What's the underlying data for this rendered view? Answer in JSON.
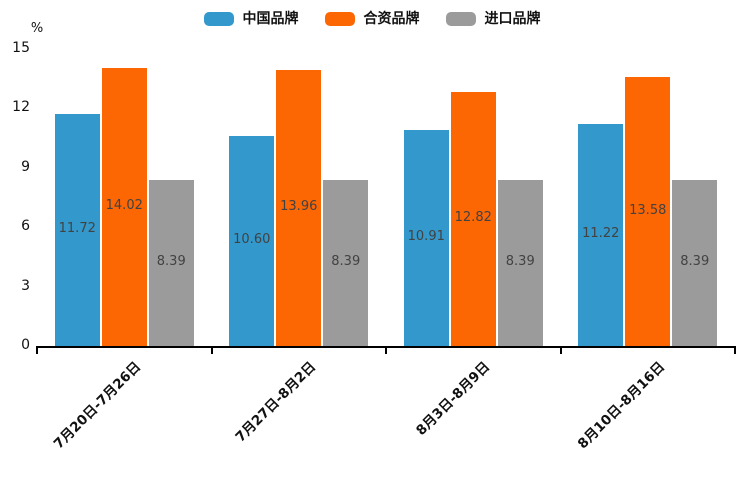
{
  "chart_data": {
    "type": "bar",
    "title": "",
    "unit_label": "%",
    "categories": [
      "7月20日-7月26日",
      "7月27日-8月2日",
      "8月3日-8月9日",
      "8月10日-8月16日"
    ],
    "series": [
      {
        "name": "中国品牌",
        "color": "#3398cc",
        "values": [
          11.72,
          10.6,
          10.91,
          11.22
        ],
        "labels": [
          "11.72",
          "10.60",
          "10.91",
          "11.22"
        ]
      },
      {
        "name": "合资品牌",
        "color": "#fc6603",
        "values": [
          14.02,
          13.96,
          12.82,
          13.58
        ],
        "labels": [
          "14.02",
          "13.96",
          "12.82",
          "13.58"
        ]
      },
      {
        "name": "进口品牌",
        "color": "#9b9b9b",
        "values": [
          8.39,
          8.39,
          8.39,
          8.39
        ],
        "labels": [
          "8.39",
          "8.39",
          "8.39",
          "8.39"
        ]
      }
    ],
    "y_axis": {
      "min": 0,
      "max": 15,
      "ticks": [
        0,
        3,
        6,
        9,
        12,
        15
      ]
    },
    "legend_position": "top",
    "grid": false,
    "value_label_position": "inside-middle",
    "x_label_rotation_deg": 45,
    "axis_color": "#000000",
    "background_color": "#ffffff"
  }
}
